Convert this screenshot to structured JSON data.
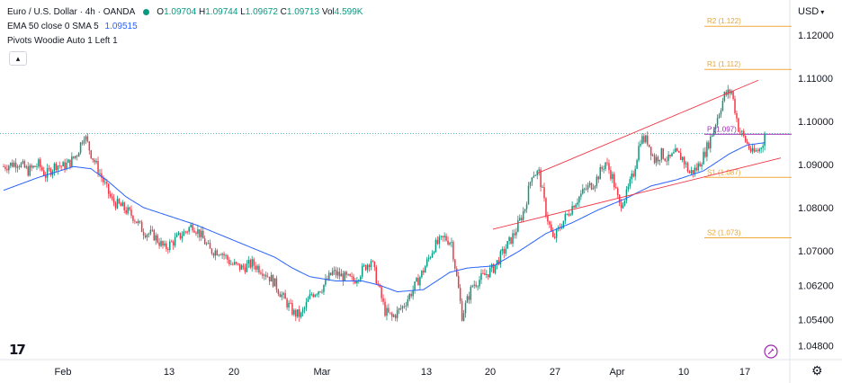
{
  "legend": {
    "symbol": "Euro / U.S. Dollar · 4h · OANDA",
    "open_label": "O",
    "open": "1.09704",
    "high_label": "H",
    "high": "1.09744",
    "low_label": "L",
    "low": "1.09672",
    "close_label": "C",
    "close": "1.09713",
    "vol_label": "Vol",
    "vol": "4.599K",
    "indicator1": "EMA 50 close 0 SMA 5",
    "indicator1_value": "1.09515",
    "indicator2": "Pivots Woodie Auto 1 Left 1",
    "collapse_icon": "chevron-up-icon"
  },
  "currency_label": "USD",
  "settings_icon": "gear-icon",
  "logo_icon": "tradingview-logo-icon",
  "colors": {
    "up": "#089981",
    "down": "#f23645",
    "ema": "#2962ff",
    "pivot_support_resistance": "#f0a83a",
    "pivot_p": "#9c27b0",
    "channel": "#f23645",
    "last_price": "#26a69a"
  },
  "chart_data": {
    "type": "candlestick",
    "timeframe": "4h",
    "x_tick_labels": [
      "Feb",
      "13",
      "20",
      "Mar",
      "13",
      "20",
      "27",
      "Apr",
      "10",
      "17"
    ],
    "y_tick_labels": [
      "1.12000",
      "1.11000",
      "1.10000",
      "1.09000",
      "1.08000",
      "1.07000",
      "1.06200",
      "1.05400",
      "1.04800"
    ],
    "y_ticks": [
      1.12,
      1.11,
      1.1,
      1.09,
      1.08,
      1.07,
      1.062,
      1.054,
      1.048
    ],
    "ylim": [
      1.0452,
      1.126
    ],
    "last_price": 1.09713,
    "ema_last": 1.09515,
    "pivots": [
      {
        "label": "R2 (1.122)",
        "value": 1.122
      },
      {
        "label": "R1 (1.112)",
        "value": 1.112
      },
      {
        "label": "P (1.097)",
        "value": 1.097
      },
      {
        "label": "S1 (1.087)",
        "value": 1.087
      },
      {
        "label": "S2 (1.073)",
        "value": 1.073
      }
    ],
    "channel": {
      "upper": [
        1.088,
        1.1095
      ],
      "lower": [
        1.075,
        1.0915
      ]
    },
    "trend_path": [
      [
        0,
        1.0895
      ],
      [
        8,
        1.0905
      ],
      [
        14,
        1.0885
      ],
      [
        20,
        1.09
      ],
      [
        24,
        1.0875
      ],
      [
        30,
        1.09
      ],
      [
        34,
        1.0895
      ],
      [
        38,
        1.0905
      ],
      [
        42,
        1.0925
      ],
      [
        46,
        1.097
      ],
      [
        50,
        1.0925
      ],
      [
        56,
        1.087
      ],
      [
        62,
        1.0815
      ],
      [
        68,
        1.08
      ],
      [
        74,
        1.078
      ],
      [
        80,
        1.0745
      ],
      [
        86,
        1.0735
      ],
      [
        92,
        1.0705
      ],
      [
        98,
        1.0725
      ],
      [
        104,
        1.0745
      ],
      [
        108,
        1.076
      ],
      [
        112,
        1.074
      ],
      [
        118,
        1.07
      ],
      [
        124,
        1.07
      ],
      [
        130,
        1.067
      ],
      [
        136,
        1.066
      ],
      [
        142,
        1.067
      ],
      [
        148,
        1.0655
      ],
      [
        154,
        1.063
      ],
      [
        160,
        1.059
      ],
      [
        166,
        1.0555
      ],
      [
        170,
        1.055
      ],
      [
        176,
        1.06
      ],
      [
        182,
        1.0615
      ],
      [
        188,
        1.065
      ],
      [
        194,
        1.064
      ],
      [
        200,
        1.063
      ],
      [
        206,
        1.066
      ],
      [
        210,
        1.068
      ],
      [
        214,
        1.062
      ],
      [
        218,
        1.056
      ],
      [
        222,
        1.0545
      ],
      [
        228,
        1.057
      ],
      [
        234,
        1.061
      ],
      [
        240,
        1.0655
      ],
      [
        246,
        1.071
      ],
      [
        252,
        1.073
      ],
      [
        256,
        1.072
      ],
      [
        260,
        1.061
      ],
      [
        262,
        1.055
      ],
      [
        268,
        1.062
      ],
      [
        274,
        1.064
      ],
      [
        280,
        1.066
      ],
      [
        286,
        1.07
      ],
      [
        292,
        1.074
      ],
      [
        298,
        1.08
      ],
      [
        302,
        1.088
      ],
      [
        306,
        1.088
      ],
      [
        310,
        1.079
      ],
      [
        314,
        1.0725
      ],
      [
        320,
        1.077
      ],
      [
        326,
        1.081
      ],
      [
        332,
        1.084
      ],
      [
        338,
        1.086
      ],
      [
        344,
        1.0905
      ],
      [
        348,
        1.087
      ],
      [
        352,
        1.0805
      ],
      [
        356,
        1.083
      ],
      [
        360,
        1.088
      ],
      [
        364,
        1.096
      ],
      [
        368,
        1.0955
      ],
      [
        372,
        1.091
      ],
      [
        376,
        1.0925
      ],
      [
        380,
        1.091
      ],
      [
        384,
        1.0925
      ],
      [
        388,
        1.0915
      ],
      [
        392,
        1.088
      ],
      [
        396,
        1.089
      ],
      [
        400,
        1.092
      ],
      [
        404,
        1.096
      ],
      [
        408,
        1.101
      ],
      [
        412,
        1.106
      ],
      [
        416,
        1.107
      ],
      [
        420,
        1.0985
      ],
      [
        424,
        1.0955
      ],
      [
        428,
        1.0925
      ],
      [
        432,
        1.0935
      ],
      [
        436,
        1.0971
      ]
    ],
    "ema_path": [
      [
        0,
        1.084
      ],
      [
        20,
        1.087
      ],
      [
        40,
        1.0895
      ],
      [
        50,
        1.089
      ],
      [
        60,
        1.086
      ],
      [
        70,
        1.0825
      ],
      [
        80,
        1.08
      ],
      [
        95,
        1.078
      ],
      [
        110,
        1.076
      ],
      [
        125,
        1.0735
      ],
      [
        140,
        1.071
      ],
      [
        155,
        1.0685
      ],
      [
        165,
        1.066
      ],
      [
        175,
        1.064
      ],
      [
        190,
        1.063
      ],
      [
        205,
        1.063
      ],
      [
        215,
        1.062
      ],
      [
        225,
        1.0605
      ],
      [
        240,
        1.061
      ],
      [
        255,
        1.065
      ],
      [
        265,
        1.066
      ],
      [
        280,
        1.0665
      ],
      [
        295,
        1.07
      ],
      [
        310,
        1.074
      ],
      [
        325,
        1.0765
      ],
      [
        340,
        1.0795
      ],
      [
        355,
        1.082
      ],
      [
        370,
        1.085
      ],
      [
        385,
        1.0865
      ],
      [
        400,
        1.0885
      ],
      [
        415,
        1.0925
      ],
      [
        425,
        1.0945
      ],
      [
        436,
        1.0951
      ]
    ]
  }
}
